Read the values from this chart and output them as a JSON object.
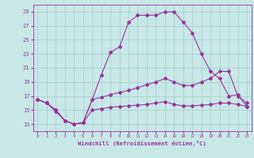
{
  "xlabel": "Windchill (Refroidissement éolien,°C)",
  "background_color": "#c8e8e8",
  "grid_color": "#a0cccc",
  "line_color": "#993399",
  "x_values": [
    0,
    1,
    2,
    3,
    4,
    5,
    6,
    7,
    8,
    9,
    10,
    11,
    12,
    13,
    14,
    15,
    16,
    17,
    18,
    19,
    20,
    21,
    22,
    23
  ],
  "series1": [
    16.5,
    16.0,
    15.0,
    13.5,
    13.0,
    13.2,
    16.5,
    20.0,
    23.2,
    24.0,
    27.5,
    28.5,
    28.5,
    28.5,
    29.0,
    29.0,
    27.5,
    26.0,
    23.0,
    20.5,
    19.5,
    17.0,
    17.2,
    15.5
  ],
  "series2": [
    16.5,
    16.0,
    15.0,
    13.5,
    13.0,
    13.2,
    16.5,
    16.8,
    17.2,
    17.5,
    17.8,
    18.2,
    18.6,
    19.0,
    19.5,
    19.0,
    18.5,
    18.5,
    19.0,
    19.5,
    20.5,
    20.5,
    17.0,
    16.0
  ],
  "series3": [
    16.5,
    16.0,
    14.8,
    13.5,
    13.0,
    13.2,
    15.0,
    15.2,
    15.4,
    15.5,
    15.6,
    15.7,
    15.8,
    16.0,
    16.2,
    15.8,
    15.6,
    15.6,
    15.7,
    15.8,
    16.0,
    16.0,
    15.8,
    15.5
  ],
  "ylim": [
    12,
    30
  ],
  "xlim": [
    -0.5,
    23.5
  ],
  "yticks": [
    13,
    15,
    17,
    19,
    21,
    23,
    25,
    27,
    29
  ],
  "xticks": [
    0,
    1,
    2,
    3,
    4,
    5,
    6,
    7,
    8,
    9,
    10,
    11,
    12,
    13,
    14,
    15,
    16,
    17,
    18,
    19,
    20,
    21,
    22,
    23
  ]
}
